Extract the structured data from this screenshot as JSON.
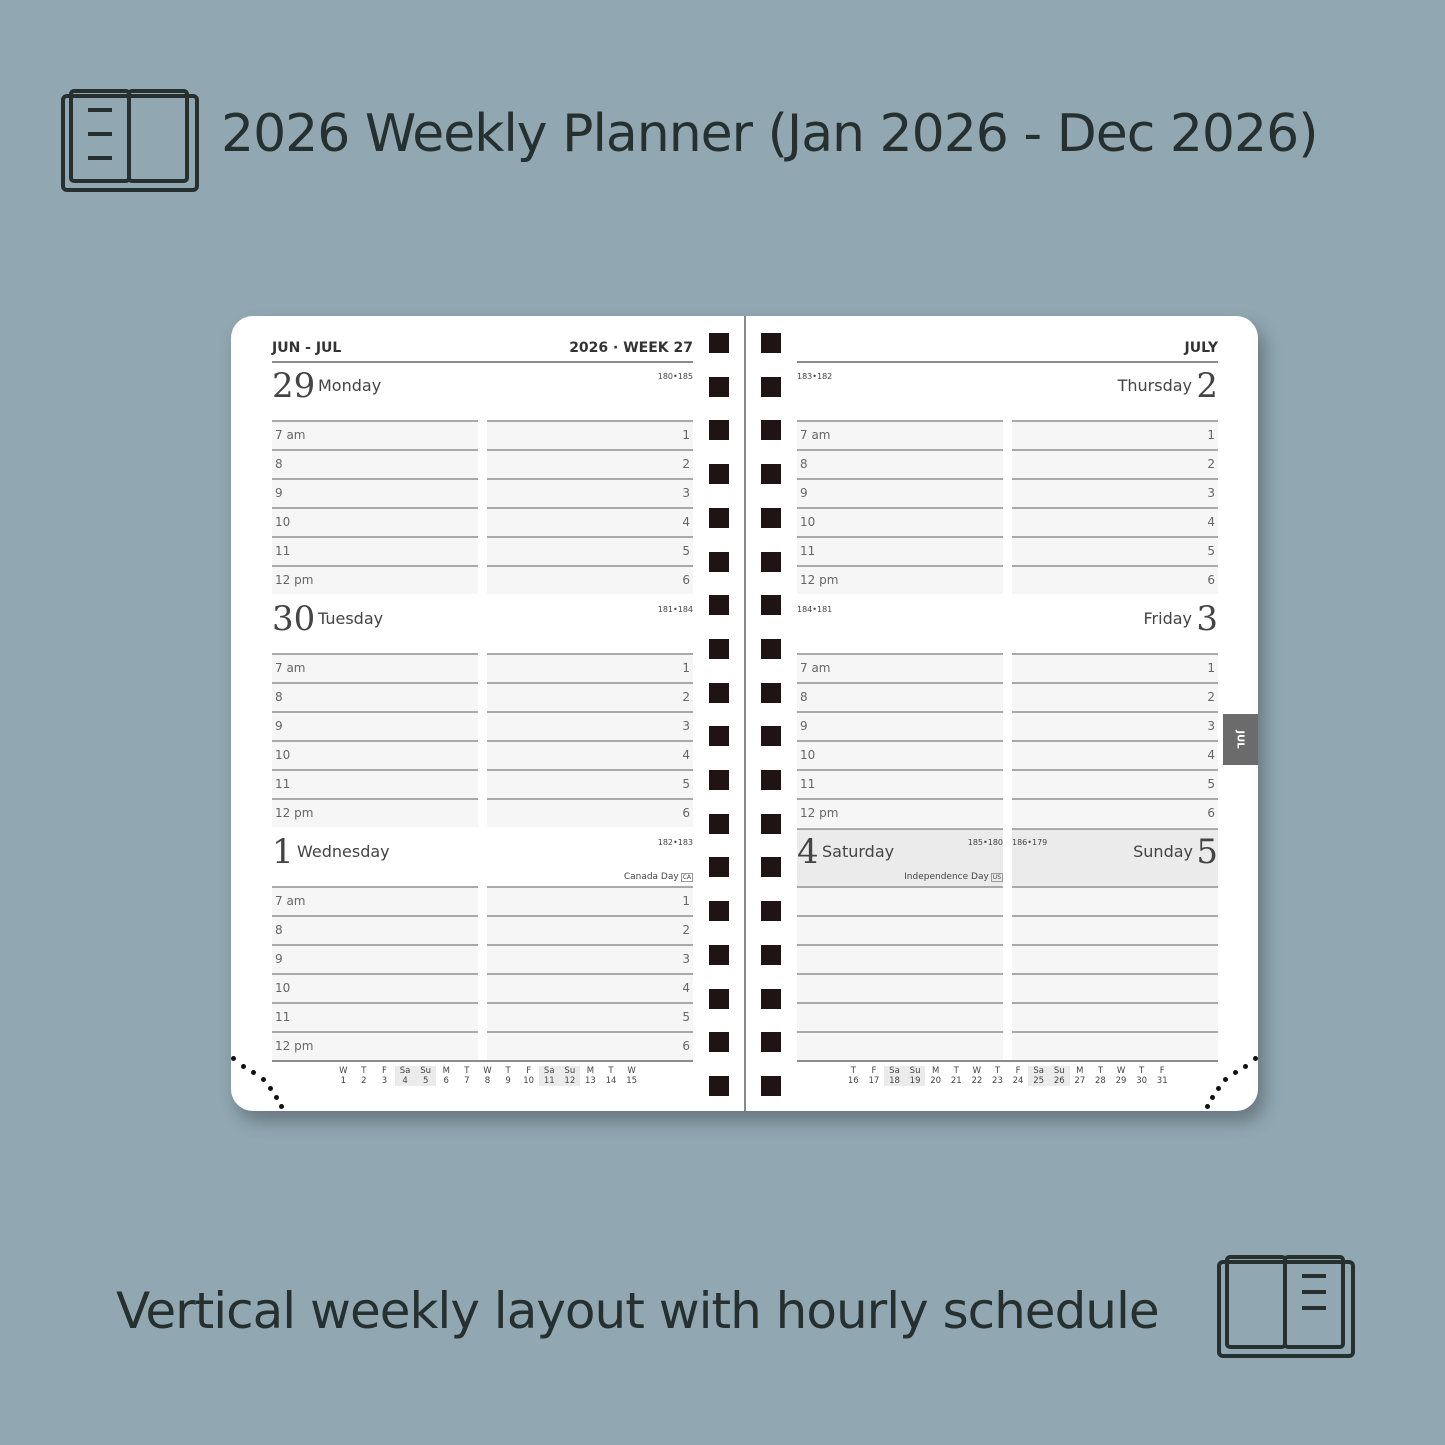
{
  "header": {
    "title": "2026 Weekly Planner (Jan 2026 - Dec 2026)",
    "subtitle": "Vertical weekly layout with hourly schedule"
  },
  "planner": {
    "left": {
      "months": "JUN - JUL",
      "year_week": "2026 · WEEK 27"
    },
    "right": {
      "month": "JULY"
    },
    "month_tab": "JUL",
    "hours": [
      "7 am",
      "8",
      "9",
      "10",
      "11",
      "12 pm"
    ],
    "slots": [
      "1",
      "2",
      "3",
      "4",
      "5",
      "6"
    ],
    "days": [
      {
        "num": "29",
        "name": "Monday",
        "doy": "180•185",
        "holiday": "",
        "holiday_code": ""
      },
      {
        "num": "30",
        "name": "Tuesday",
        "doy": "181•184",
        "holiday": "",
        "holiday_code": ""
      },
      {
        "num": "1",
        "name": "Wednesday",
        "doy": "182•183",
        "holiday": "Canada Day",
        "holiday_code": "CA"
      },
      {
        "num": "2",
        "name": "Thursday",
        "doy": "183•182",
        "holiday": "",
        "holiday_code": ""
      },
      {
        "num": "3",
        "name": "Friday",
        "doy": "184•181",
        "holiday": "",
        "holiday_code": ""
      },
      {
        "num": "4",
        "name": "Saturday",
        "doy": "185•180",
        "holiday": "Independence Day",
        "holiday_code": "US"
      },
      {
        "num": "5",
        "name": "Sunday",
        "doy": "186•179",
        "holiday": "",
        "holiday_code": ""
      }
    ],
    "mini_calendar_left": [
      [
        "W",
        "1"
      ],
      [
        "T",
        "2"
      ],
      [
        "F",
        "3"
      ],
      [
        "Sa",
        "4"
      ],
      [
        "Su",
        "5"
      ],
      [
        "M",
        "6"
      ],
      [
        "T",
        "7"
      ],
      [
        "W",
        "8"
      ],
      [
        "T",
        "9"
      ],
      [
        "F",
        "10"
      ],
      [
        "Sa",
        "11"
      ],
      [
        "Su",
        "12"
      ],
      [
        "M",
        "13"
      ],
      [
        "T",
        "14"
      ],
      [
        "W",
        "15"
      ]
    ],
    "mini_calendar_right": [
      [
        "T",
        "16"
      ],
      [
        "F",
        "17"
      ],
      [
        "Sa",
        "18"
      ],
      [
        "Su",
        "19"
      ],
      [
        "M",
        "20"
      ],
      [
        "T",
        "21"
      ],
      [
        "W",
        "22"
      ],
      [
        "T",
        "23"
      ],
      [
        "F",
        "24"
      ],
      [
        "Sa",
        "25"
      ],
      [
        "Su",
        "26"
      ],
      [
        "M",
        "27"
      ],
      [
        "T",
        "28"
      ],
      [
        "W",
        "29"
      ],
      [
        "T",
        "30"
      ],
      [
        "F",
        "31"
      ]
    ]
  },
  "colors": {
    "background": "#91a8b3",
    "text": "#26302f",
    "weekend_shade": "#ebebeb",
    "spiral": "#1f1313",
    "tab": "#6b6b6b"
  }
}
